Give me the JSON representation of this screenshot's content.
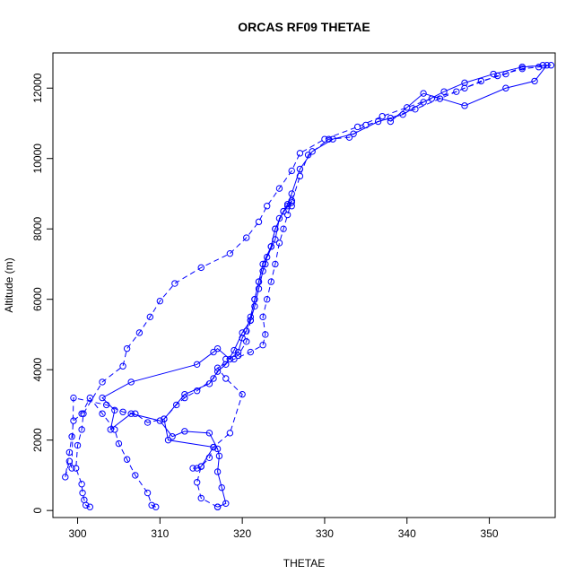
{
  "chart_data": {
    "type": "line",
    "title": "ORCAS RF09 THETAE",
    "xlabel": "THETAE",
    "ylabel": "Altitude (m)",
    "xlim": [
      297,
      358
    ],
    "ylim": [
      -200,
      13000
    ],
    "x_ticks": [
      300,
      310,
      320,
      330,
      340,
      350
    ],
    "y_ticks": [
      0,
      2000,
      4000,
      6000,
      8000,
      10000,
      12000
    ],
    "grid": false,
    "legend": "none",
    "color": "#0000ff",
    "series": [
      {
        "line_style": "dashed",
        "points": [
          [
            301.5,
            100
          ],
          [
            301.0,
            150
          ],
          [
            300.8,
            300
          ],
          [
            300.6,
            500
          ],
          [
            300.5,
            750
          ],
          [
            299.8,
            1200
          ],
          [
            300.0,
            1850
          ],
          [
            300.5,
            2300
          ],
          [
            300.7,
            2750
          ],
          [
            303.0,
            3650
          ],
          [
            305.5,
            4100
          ],
          [
            306.0,
            4600
          ],
          [
            307.5,
            5050
          ],
          [
            308.8,
            5500
          ],
          [
            310.0,
            5950
          ],
          [
            311.8,
            6450
          ],
          [
            315.0,
            6900
          ],
          [
            318.5,
            7300
          ],
          [
            320.5,
            7750
          ],
          [
            322.0,
            8200
          ],
          [
            323.0,
            8650
          ],
          [
            324.5,
            9150
          ],
          [
            326.0,
            9650
          ],
          [
            327.0,
            10150
          ],
          [
            330.0,
            10550
          ],
          [
            334.0,
            10900
          ],
          [
            337.0,
            11200
          ],
          [
            340.0,
            11450
          ],
          [
            343.0,
            11700
          ],
          [
            346.0,
            11900
          ],
          [
            349.0,
            12200
          ],
          [
            352.0,
            12400
          ],
          [
            354.0,
            12600
          ],
          [
            356.5,
            12650
          ]
        ]
      },
      {
        "line_style": "dashed",
        "points": [
          [
            309.5,
            100
          ],
          [
            309.0,
            150
          ],
          [
            308.5,
            500
          ],
          [
            307.0,
            1000
          ],
          [
            306.0,
            1450
          ],
          [
            305.0,
            1900
          ],
          [
            304.5,
            2300
          ],
          [
            303.0,
            2750
          ],
          [
            301.5,
            3200
          ],
          [
            300.5,
            2750
          ],
          [
            299.5,
            2550
          ],
          [
            299.3,
            2100
          ],
          [
            299.0,
            1650
          ],
          [
            298.5,
            950
          ],
          [
            299.0,
            1400
          ],
          [
            299.3,
            1200
          ],
          [
            299.5,
            3200
          ],
          [
            303.5,
            3000
          ],
          [
            305.5,
            2800
          ],
          [
            307.0,
            2750
          ],
          [
            308.5,
            2500
          ],
          [
            310.5,
            2600
          ],
          [
            312.0,
            3000
          ],
          [
            313.0,
            3200
          ],
          [
            314.5,
            3400
          ],
          [
            316.5,
            3750
          ],
          [
            318.0,
            4300
          ],
          [
            319.5,
            4400
          ],
          [
            320.5,
            4800
          ],
          [
            321.0,
            5400
          ],
          [
            321.5,
            6000
          ],
          [
            322.0,
            6500
          ],
          [
            322.8,
            7000
          ],
          [
            323.5,
            7500
          ],
          [
            324.0,
            8000
          ],
          [
            325.0,
            8500
          ],
          [
            326.0,
            8750
          ],
          [
            327.0,
            9500
          ],
          [
            328.0,
            10100
          ],
          [
            330.5,
            10550
          ],
          [
            333.0,
            10600
          ],
          [
            335.0,
            10950
          ],
          [
            338.0,
            11150
          ],
          [
            341.0,
            11400
          ],
          [
            344.0,
            11700
          ],
          [
            347.0,
            12000
          ],
          [
            351.0,
            12350
          ],
          [
            354.0,
            12550
          ],
          [
            356.0,
            12600
          ],
          [
            357.5,
            12650
          ]
        ]
      },
      {
        "line_style": "solid",
        "points": [
          [
            317.0,
            100
          ],
          [
            318.0,
            200
          ],
          [
            317.5,
            650
          ],
          [
            317.0,
            1100
          ],
          [
            317.2,
            1550
          ],
          [
            317.0,
            1750
          ],
          [
            316.0,
            2200
          ],
          [
            313.0,
            2250
          ],
          [
            311.5,
            2100
          ],
          [
            310.0,
            2550
          ],
          [
            306.5,
            2750
          ],
          [
            304.0,
            2300
          ],
          [
            304.5,
            2850
          ],
          [
            303.0,
            3200
          ],
          [
            306.5,
            3650
          ],
          [
            314.5,
            4150
          ],
          [
            316.5,
            4500
          ],
          [
            317.0,
            4600
          ],
          [
            318.5,
            4300
          ],
          [
            319.5,
            4500
          ],
          [
            320.0,
            4900
          ],
          [
            320.5,
            5100
          ],
          [
            321.0,
            5500
          ],
          [
            321.5,
            6000
          ],
          [
            322.0,
            6500
          ],
          [
            322.5,
            7000
          ],
          [
            323.5,
            7500
          ],
          [
            324.0,
            8000
          ],
          [
            325.0,
            8500
          ],
          [
            325.5,
            8700
          ],
          [
            326.0,
            9000
          ],
          [
            327.0,
            9700
          ],
          [
            328.5,
            10200
          ],
          [
            331.0,
            10550
          ],
          [
            333.5,
            10700
          ],
          [
            336.5,
            11050
          ],
          [
            339.5,
            11250
          ],
          [
            342.0,
            11600
          ],
          [
            344.5,
            11900
          ],
          [
            347.0,
            12150
          ],
          [
            350.5,
            12400
          ],
          [
            354.0,
            12600
          ],
          [
            357.0,
            12650
          ],
          [
            355.5,
            12200
          ],
          [
            352.0,
            12000
          ],
          [
            347.0,
            11500
          ],
          [
            342.0,
            11850
          ],
          [
            338.0,
            11050
          ]
        ]
      },
      {
        "line_style": "dashed",
        "points": [
          [
            317.0,
            100
          ],
          [
            315.0,
            350
          ],
          [
            314.5,
            800
          ],
          [
            315.0,
            1250
          ],
          [
            316.0,
            1500
          ],
          [
            316.5,
            1800
          ],
          [
            318.5,
            2200
          ],
          [
            320.0,
            3300
          ],
          [
            318.0,
            3750
          ],
          [
            317.0,
            4050
          ],
          [
            319.0,
            4300
          ],
          [
            321.0,
            4500
          ],
          [
            322.5,
            4700
          ],
          [
            322.8,
            5000
          ],
          [
            322.5,
            5500
          ],
          [
            323.0,
            6000
          ],
          [
            323.5,
            6500
          ],
          [
            324.0,
            7000
          ],
          [
            324.5,
            7600
          ],
          [
            325.0,
            8000
          ],
          [
            325.5,
            8400
          ],
          [
            326.0,
            8800
          ],
          [
            326.0,
            8650
          ]
        ]
      },
      {
        "line_style": "solid",
        "points": [
          [
            314.0,
            1200
          ],
          [
            314.5,
            1200
          ],
          [
            315.0,
            1250
          ],
          [
            316.5,
            1800
          ],
          [
            311.0,
            2000
          ],
          [
            310.5,
            2600
          ],
          [
            313.0,
            3300
          ],
          [
            316.0,
            3600
          ],
          [
            317.0,
            3950
          ],
          [
            318.0,
            4150
          ],
          [
            319.0,
            4550
          ],
          [
            320.0,
            5050
          ],
          [
            321.0,
            5400
          ],
          [
            321.5,
            5800
          ],
          [
            322.0,
            6300
          ],
          [
            322.5,
            6800
          ],
          [
            323.0,
            7200
          ],
          [
            324.0,
            7700
          ],
          [
            324.5,
            8300
          ],
          [
            325.5,
            8650
          ],
          [
            326.0,
            8800
          ]
        ]
      }
    ]
  }
}
